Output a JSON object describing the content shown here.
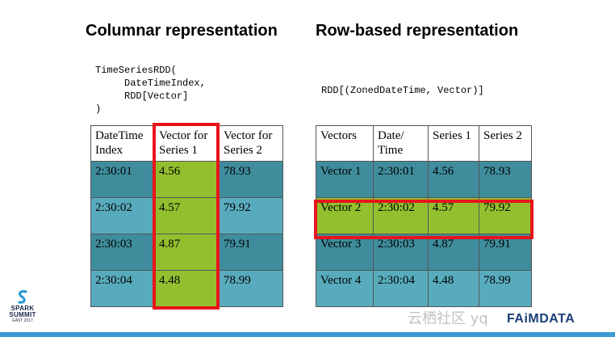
{
  "left": {
    "title": "Columnar representation",
    "code": "TimeSeriesRDD(\n     DateTimeIndex,\n     RDD[Vector]\n)",
    "header": [
      "DateTime\nIndex",
      "Vector for\nSeries 1",
      "Vector for\nSeries 2"
    ],
    "rows": [
      [
        "2:30:01",
        "4.56",
        "78.93"
      ],
      [
        "2:30:02",
        "4.57",
        "79.92"
      ],
      [
        "2:30:03",
        "4.87",
        "79.91"
      ],
      [
        "2:30:04",
        "4.48",
        "78.99"
      ]
    ],
    "highlight": "column 2"
  },
  "right": {
    "title": "Row-based representation",
    "code": "RDD[(ZonedDateTime, Vector)]",
    "header": [
      "Vectors",
      "Date/\nTime",
      "Series 1",
      "Series 2"
    ],
    "rows": [
      [
        "Vector 1",
        "2:30:01",
        "4.56",
        "78.93"
      ],
      [
        "Vector 2",
        "2:30:02",
        "4.57",
        "79.92"
      ],
      [
        "Vector 3",
        "2:30:03",
        "4.87",
        "79.91"
      ],
      [
        "Vector 4",
        "2:30:04",
        "4.48",
        "78.99"
      ]
    ],
    "highlight": "row 2"
  },
  "logo": {
    "line1": "SPARK",
    "line2": "SUMMIT",
    "line3": "EAST 2017"
  },
  "watermark": "云栖社区 yq",
  "brand": "FAiMDATA",
  "colors": {
    "dark_teal": "#3f8d9c",
    "light_teal": "#58abbd",
    "green": "#93bf2f",
    "highlight_red": "#e8141b"
  }
}
